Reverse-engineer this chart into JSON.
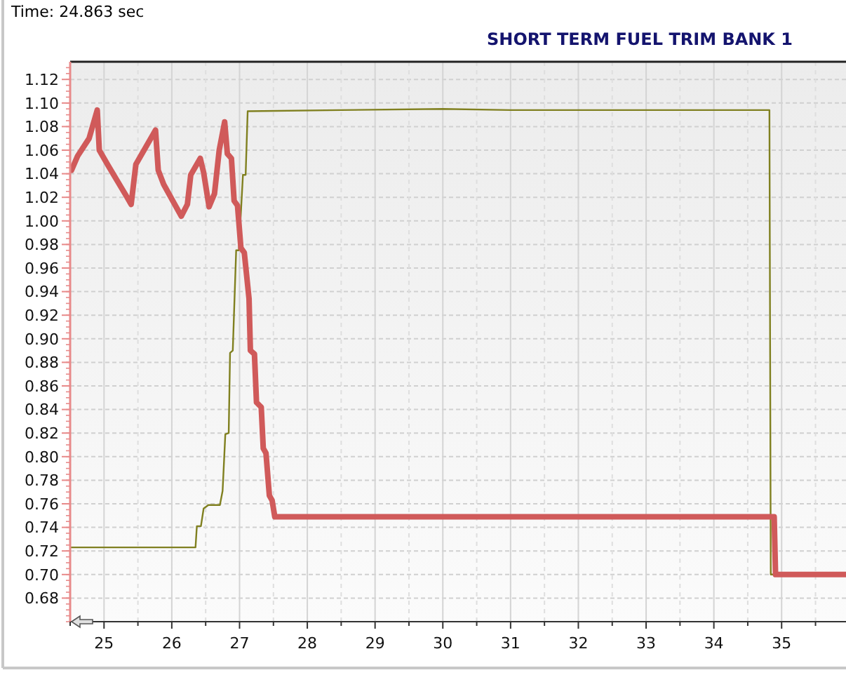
{
  "chart_data": {
    "type": "line",
    "title": "SHORT TERM FUEL TRIM BANK 1",
    "annotations": [
      "Time: 24.863 sec"
    ],
    "xlim": [
      24.5,
      35.95
    ],
    "xticks": [
      25,
      26,
      27,
      28,
      29,
      30,
      31,
      32,
      33,
      34,
      35
    ],
    "ylim": [
      0.66,
      1.135
    ],
    "yticks": [
      0.68,
      {
        "value": 0.7,
        "label": "0.70"
      },
      0.72,
      0.74,
      0.76,
      0.78,
      {
        "value": 0.8,
        "label": "0.80"
      },
      0.82,
      0.84,
      0.86,
      0.88,
      {
        "value": 0.9,
        "label": "0.90"
      },
      0.92,
      0.94,
      0.96,
      0.98,
      {
        "value": 1,
        "label": "1.00"
      },
      1.02,
      1.04,
      1.06,
      1.08,
      {
        "value": 1.1,
        "label": "1.10"
      },
      1.12
    ],
    "grid": true,
    "marker": "none",
    "line_style": "solid",
    "series": [
      {
        "color": "#808020",
        "x": [
          24.5,
          26.35,
          26.37,
          26.43,
          26.47,
          26.54,
          26.71,
          26.75,
          26.79,
          26.84,
          26.86,
          26.9,
          26.95,
          26.99,
          27.05,
          27.09,
          27.12,
          28.5,
          30,
          31,
          33,
          34.82,
          34.84,
          35.95
        ],
        "values": [
          0.723,
          0.723,
          0.741,
          0.741,
          0.756,
          0.759,
          0.759,
          0.771,
          0.819,
          0.82,
          0.888,
          0.89,
          0.975,
          0.975,
          1.039,
          1.039,
          1.093,
          1.094,
          1.095,
          1.094,
          1.094,
          1.094,
          0.7,
          0.7
        ]
      },
      {
        "color": "#d05a5a",
        "x": [
          24.52,
          24.61,
          24.78,
          24.9,
          24.93,
          25.06,
          25.33,
          25.4,
          25.47,
          25.76,
          25.8,
          25.88,
          26.14,
          26.23,
          26.28,
          26.42,
          26.47,
          26.55,
          26.63,
          26.7,
          26.78,
          26.82,
          26.88,
          26.92,
          26.97,
          27.02,
          27.07,
          27.14,
          27.16,
          27.22,
          27.25,
          27.32,
          27.35,
          27.39,
          27.44,
          27.48,
          27.52,
          34.89,
          34.91,
          35.95
        ],
        "values": [
          1.043,
          1.055,
          1.07,
          1.094,
          1.06,
          1.047,
          1.021,
          1.014,
          1.048,
          1.077,
          1.043,
          1.031,
          1.004,
          1.014,
          1.039,
          1.053,
          1.041,
          1.012,
          1.023,
          1.06,
          1.084,
          1.057,
          1.053,
          1.017,
          1.013,
          0.977,
          0.973,
          0.934,
          0.89,
          0.887,
          0.846,
          0.842,
          0.807,
          0.803,
          0.767,
          0.763,
          0.749,
          0.749,
          0.7,
          0.7
        ]
      }
    ]
  }
}
